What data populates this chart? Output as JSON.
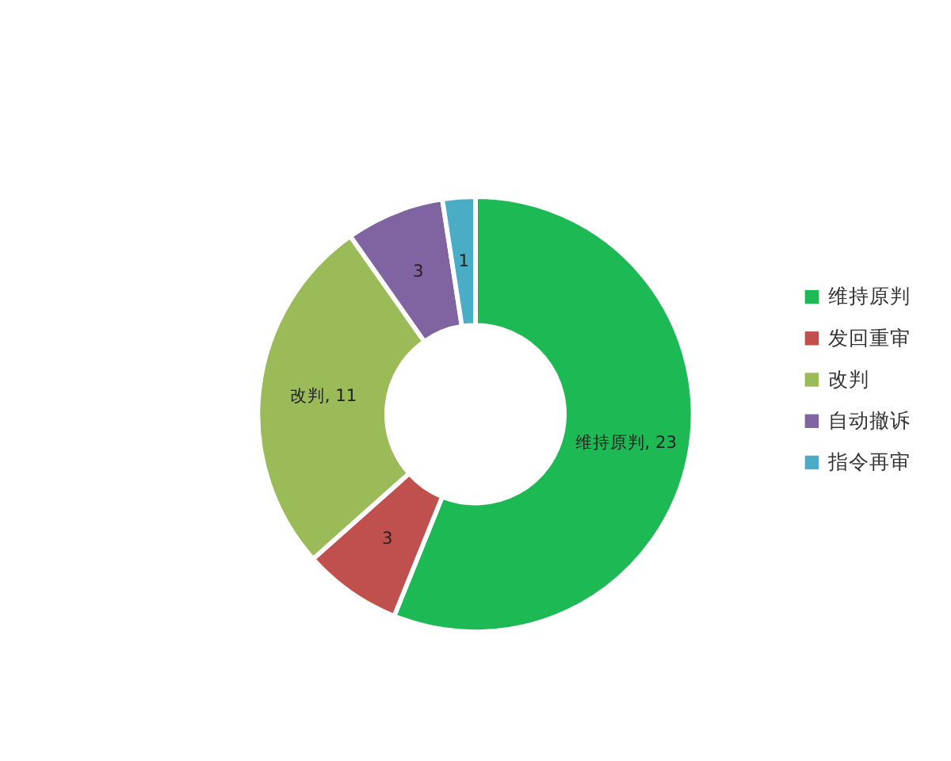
{
  "chart_data": {
    "type": "donut",
    "categories": [
      "维持原判",
      "发回重审",
      "改判",
      "自动撤诉",
      "指令再审"
    ],
    "values": [
      23,
      3,
      11,
      3,
      1
    ],
    "colors": [
      "#1db954",
      "#c0504d",
      "#9bbb59",
      "#8064a2",
      "#4bacc6"
    ],
    "value_labels": [
      "维持原判, 23",
      "3",
      "改判, 11",
      "3",
      "1"
    ],
    "legend": "right"
  }
}
